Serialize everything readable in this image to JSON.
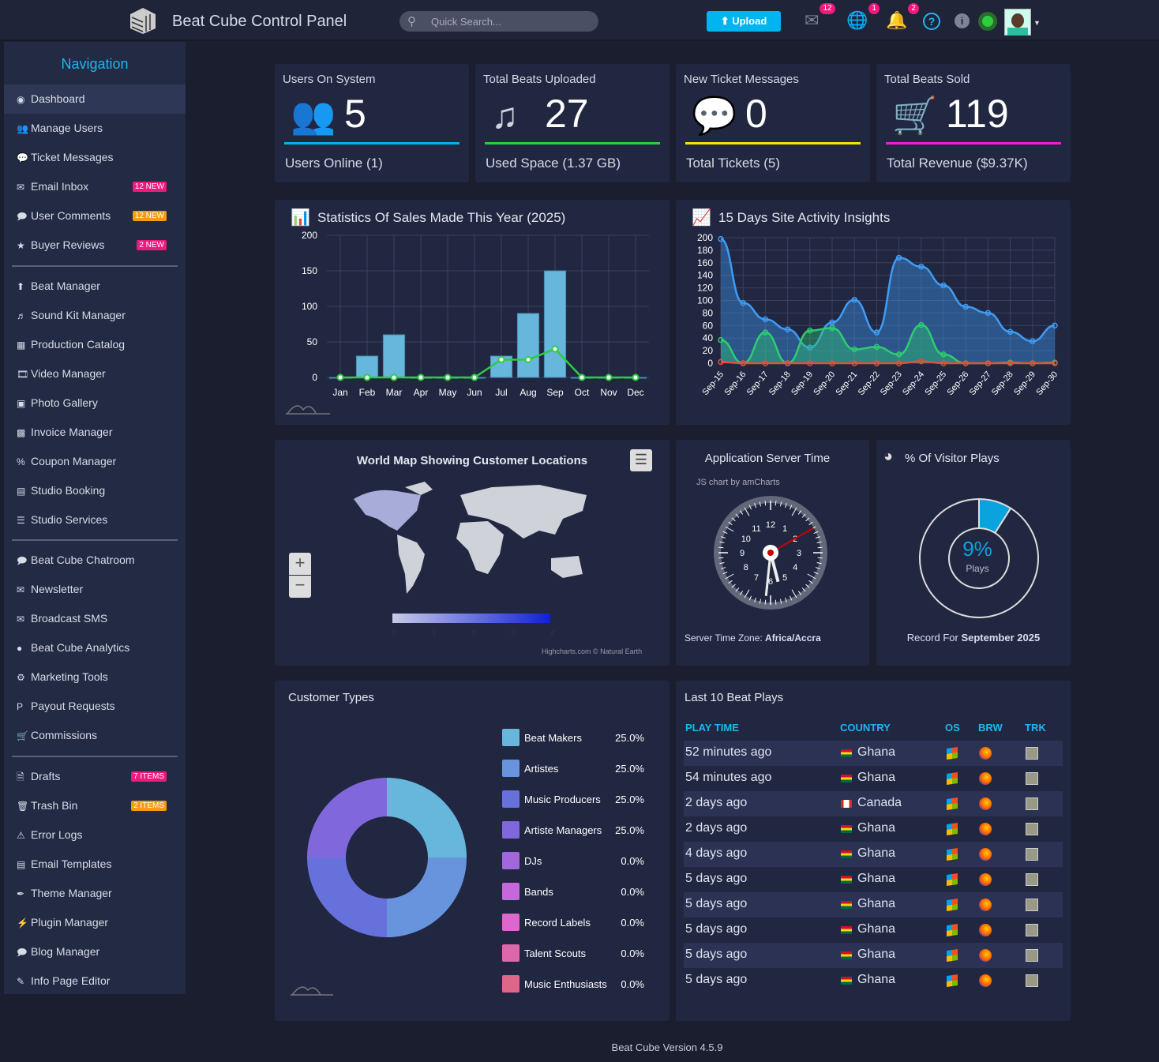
{
  "header": {
    "title": "Beat Cube Control Panel",
    "search_placeholder": "Quick Search...",
    "upload_label": "Upload",
    "mail_badge": "12",
    "globe_badge": "1",
    "bell_badge": "2",
    "colors": {
      "accent": "#00b4f0",
      "badge": "#f0197d",
      "online": "#2ecc40"
    }
  },
  "sidebar": {
    "title": "Navigation",
    "groups": [
      [
        {
          "label": "Dashboard",
          "icon": "dashboard-icon",
          "active": true
        },
        {
          "label": "Manage Users",
          "icon": "users-icon"
        },
        {
          "label": "Ticket Messages",
          "icon": "comments-icon"
        },
        {
          "label": "Email Inbox",
          "icon": "envelope-icon",
          "badge": "12 NEW",
          "badge_color": "#f0197d"
        },
        {
          "label": "User Comments",
          "icon": "comment-icon",
          "badge": "12 NEW",
          "badge_color": "#f39c12"
        },
        {
          "label": "Buyer Reviews",
          "icon": "star-icon",
          "badge": "2 NEW",
          "badge_color": "#f0197d"
        }
      ],
      [
        {
          "label": "Beat Manager",
          "icon": "upload-icon"
        },
        {
          "label": "Sound Kit Manager",
          "icon": "music-icon"
        },
        {
          "label": "Production Catalog",
          "icon": "catalog-icon"
        },
        {
          "label": "Video Manager",
          "icon": "film-icon"
        },
        {
          "label": "Photo Gallery",
          "icon": "image-icon"
        },
        {
          "label": "Invoice Manager",
          "icon": "money-icon"
        },
        {
          "label": "Coupon Manager",
          "icon": "percent-icon"
        },
        {
          "label": "Studio Booking",
          "icon": "book-icon"
        },
        {
          "label": "Studio Services",
          "icon": "sliders-icon"
        }
      ],
      [
        {
          "label": "Beat Cube Chatroom",
          "icon": "chat-icon"
        },
        {
          "label": "Newsletter",
          "icon": "envelope-icon"
        },
        {
          "label": "Broadcast SMS",
          "icon": "envelope-icon"
        },
        {
          "label": "Beat Cube Analytics",
          "icon": "globe-icon"
        },
        {
          "label": "Marketing Tools",
          "icon": "tools-icon"
        },
        {
          "label": "Payout Requests",
          "icon": "paypal-icon"
        },
        {
          "label": "Commissions",
          "icon": "cart-icon"
        }
      ],
      [
        {
          "label": "Drafts",
          "icon": "file-icon",
          "badge": "7 ITEMS",
          "badge_color": "#f0197d"
        },
        {
          "label": "Trash Bin",
          "icon": "trash-icon",
          "badge": "2 ITEMS",
          "badge_color": "#f39c12"
        },
        {
          "label": "Error Logs",
          "icon": "warning-icon"
        },
        {
          "label": "Email Templates",
          "icon": "template-icon"
        },
        {
          "label": "Theme Manager",
          "icon": "brush-icon"
        },
        {
          "label": "Plugin Manager",
          "icon": "plug-icon"
        },
        {
          "label": "Blog Manager",
          "icon": "comment-icon"
        },
        {
          "label": "Info Page Editor",
          "icon": "edit-icon"
        }
      ]
    ]
  },
  "stats": [
    {
      "label": "Users On System",
      "value": "5",
      "sub": "Users Online (1)",
      "icon": "users-icon",
      "color": "#00b4f0"
    },
    {
      "label": "Total Beats Uploaded",
      "value": "27",
      "sub": "Used Space (1.37 GB)",
      "icon": "music-icon",
      "color": "#2ecc40"
    },
    {
      "label": "New Ticket Messages",
      "value": "0",
      "sub": "Total Tickets (5)",
      "icon": "comments-icon",
      "color": "#f5e400"
    },
    {
      "label": "Total Beats Sold",
      "value": "119",
      "sub": "Total Revenue ($9.37K)",
      "icon": "cart-icon",
      "color": "#f01cd8"
    }
  ],
  "chart_data": [
    {
      "type": "bar",
      "title": "Statistics Of Sales Made This Year (2025)",
      "categories": [
        "Jan",
        "Feb",
        "Mar",
        "Apr",
        "May",
        "Jun",
        "Jul",
        "Aug",
        "Sep",
        "Oct",
        "Nov",
        "Dec"
      ],
      "ylim": [
        0,
        200
      ],
      "yticks": [
        0,
        50,
        100,
        150,
        200
      ],
      "grid": true,
      "series": [
        {
          "type": "bar",
          "values": [
            0,
            30,
            60,
            0,
            0,
            0,
            30,
            90,
            150,
            0,
            0,
            0
          ],
          "color": "#67b7dc"
        },
        {
          "type": "line",
          "values": [
            0,
            0,
            0,
            0,
            0,
            0,
            25,
            25,
            40,
            0,
            0,
            0
          ],
          "color": "#2ecc40"
        }
      ]
    },
    {
      "type": "area",
      "title": "15 Days Site Activity Insights",
      "categories": [
        "Sep-15",
        "Sep-16",
        "Sep-17",
        "Sep-18",
        "Sep-19",
        "Sep-20",
        "Sep-21",
        "Sep-22",
        "Sep-23",
        "Sep-24",
        "Sep-25",
        "Sep-26",
        "Sep-27",
        "Sep-28",
        "Sep-29",
        "Sep-30"
      ],
      "ylim": [
        0,
        200
      ],
      "yticks": [
        0,
        20,
        40,
        60,
        80,
        100,
        120,
        140,
        160,
        180,
        200
      ],
      "grid": true,
      "series": [
        {
          "values": [
            198,
            96,
            70,
            54,
            25,
            65,
            101,
            49,
            168,
            154,
            124,
            90,
            80,
            50,
            35,
            60
          ],
          "color": "#3f9cf5"
        },
        {
          "values": [
            37,
            0,
            49,
            0,
            52,
            56,
            22,
            26,
            14,
            61,
            14,
            0,
            0,
            1,
            0,
            1
          ],
          "color": "#2ecc71"
        },
        {
          "values": [
            2,
            0,
            0,
            0,
            0,
            0,
            0,
            0,
            0,
            3,
            0,
            0,
            0,
            0,
            0,
            0
          ],
          "color": "#e74c3c"
        }
      ]
    },
    {
      "type": "pie",
      "title": "% Of Visitor Plays",
      "values": [
        9,
        91
      ],
      "center_value": "9%",
      "center_label": "Plays",
      "footer_prefix": "Record For",
      "footer_bold": "September 2025",
      "color": "#0aa3dd"
    },
    {
      "type": "pie",
      "title": "Customer Types",
      "categories": [
        "Beat Makers",
        "Artistes",
        "Music Producers",
        "Artiste Managers",
        "DJs",
        "Bands",
        "Record Labels",
        "Talent Scouts",
        "Music Enthusiasts"
      ],
      "values": [
        25.0,
        25.0,
        25.0,
        25.0,
        0.0,
        0.0,
        0.0,
        0.0,
        0.0
      ],
      "labels": [
        "25.0%",
        "25.0%",
        "25.0%",
        "25.0%",
        "0.0%",
        "0.0%",
        "0.0%",
        "0.0%",
        "0.0%"
      ],
      "colors": [
        "#67b7dc",
        "#6794dc",
        "#6771dc",
        "#8067dc",
        "#a367dc",
        "#c767dc",
        "#dc67ce",
        "#dc67ab",
        "#dc6788"
      ]
    }
  ],
  "map": {
    "title": "World Map Showing Customer Locations",
    "legend_ticks": [
      "0",
      "1",
      "2",
      "3",
      "4"
    ],
    "credit": "Highcharts.com © Natural Earth"
  },
  "clock": {
    "title": "Application Server Time",
    "credit": "JS chart by amCharts",
    "numbers": [
      "12",
      "1",
      "2",
      "3",
      "4",
      "5",
      "6",
      "7",
      "8",
      "9",
      "10",
      "11"
    ],
    "tz_label": "Server Time Zone:",
    "tz_value": "Africa/Accra",
    "time": {
      "h": 5,
      "m": 31,
      "s": 10
    }
  },
  "plays": {
    "title": "Last 10 Beat Plays",
    "headers": [
      "PLAY TIME",
      "COUNTRY",
      "OS",
      "BRW",
      "TRK"
    ],
    "rows": [
      {
        "time": "52 minutes ago",
        "country": "Ghana",
        "flag": "ghana"
      },
      {
        "time": "54 minutes ago",
        "country": "Ghana",
        "flag": "ghana"
      },
      {
        "time": "2 days ago",
        "country": "Canada",
        "flag": "canada"
      },
      {
        "time": "2 days ago",
        "country": "Ghana",
        "flag": "ghana"
      },
      {
        "time": "4 days ago",
        "country": "Ghana",
        "flag": "ghana"
      },
      {
        "time": "5 days ago",
        "country": "Ghana",
        "flag": "ghana"
      },
      {
        "time": "5 days ago",
        "country": "Ghana",
        "flag": "ghana"
      },
      {
        "time": "5 days ago",
        "country": "Ghana",
        "flag": "ghana"
      },
      {
        "time": "5 days ago",
        "country": "Ghana",
        "flag": "ghana"
      },
      {
        "time": "5 days ago",
        "country": "Ghana",
        "flag": "ghana"
      }
    ]
  },
  "footer": "Beat Cube Version 4.5.9"
}
